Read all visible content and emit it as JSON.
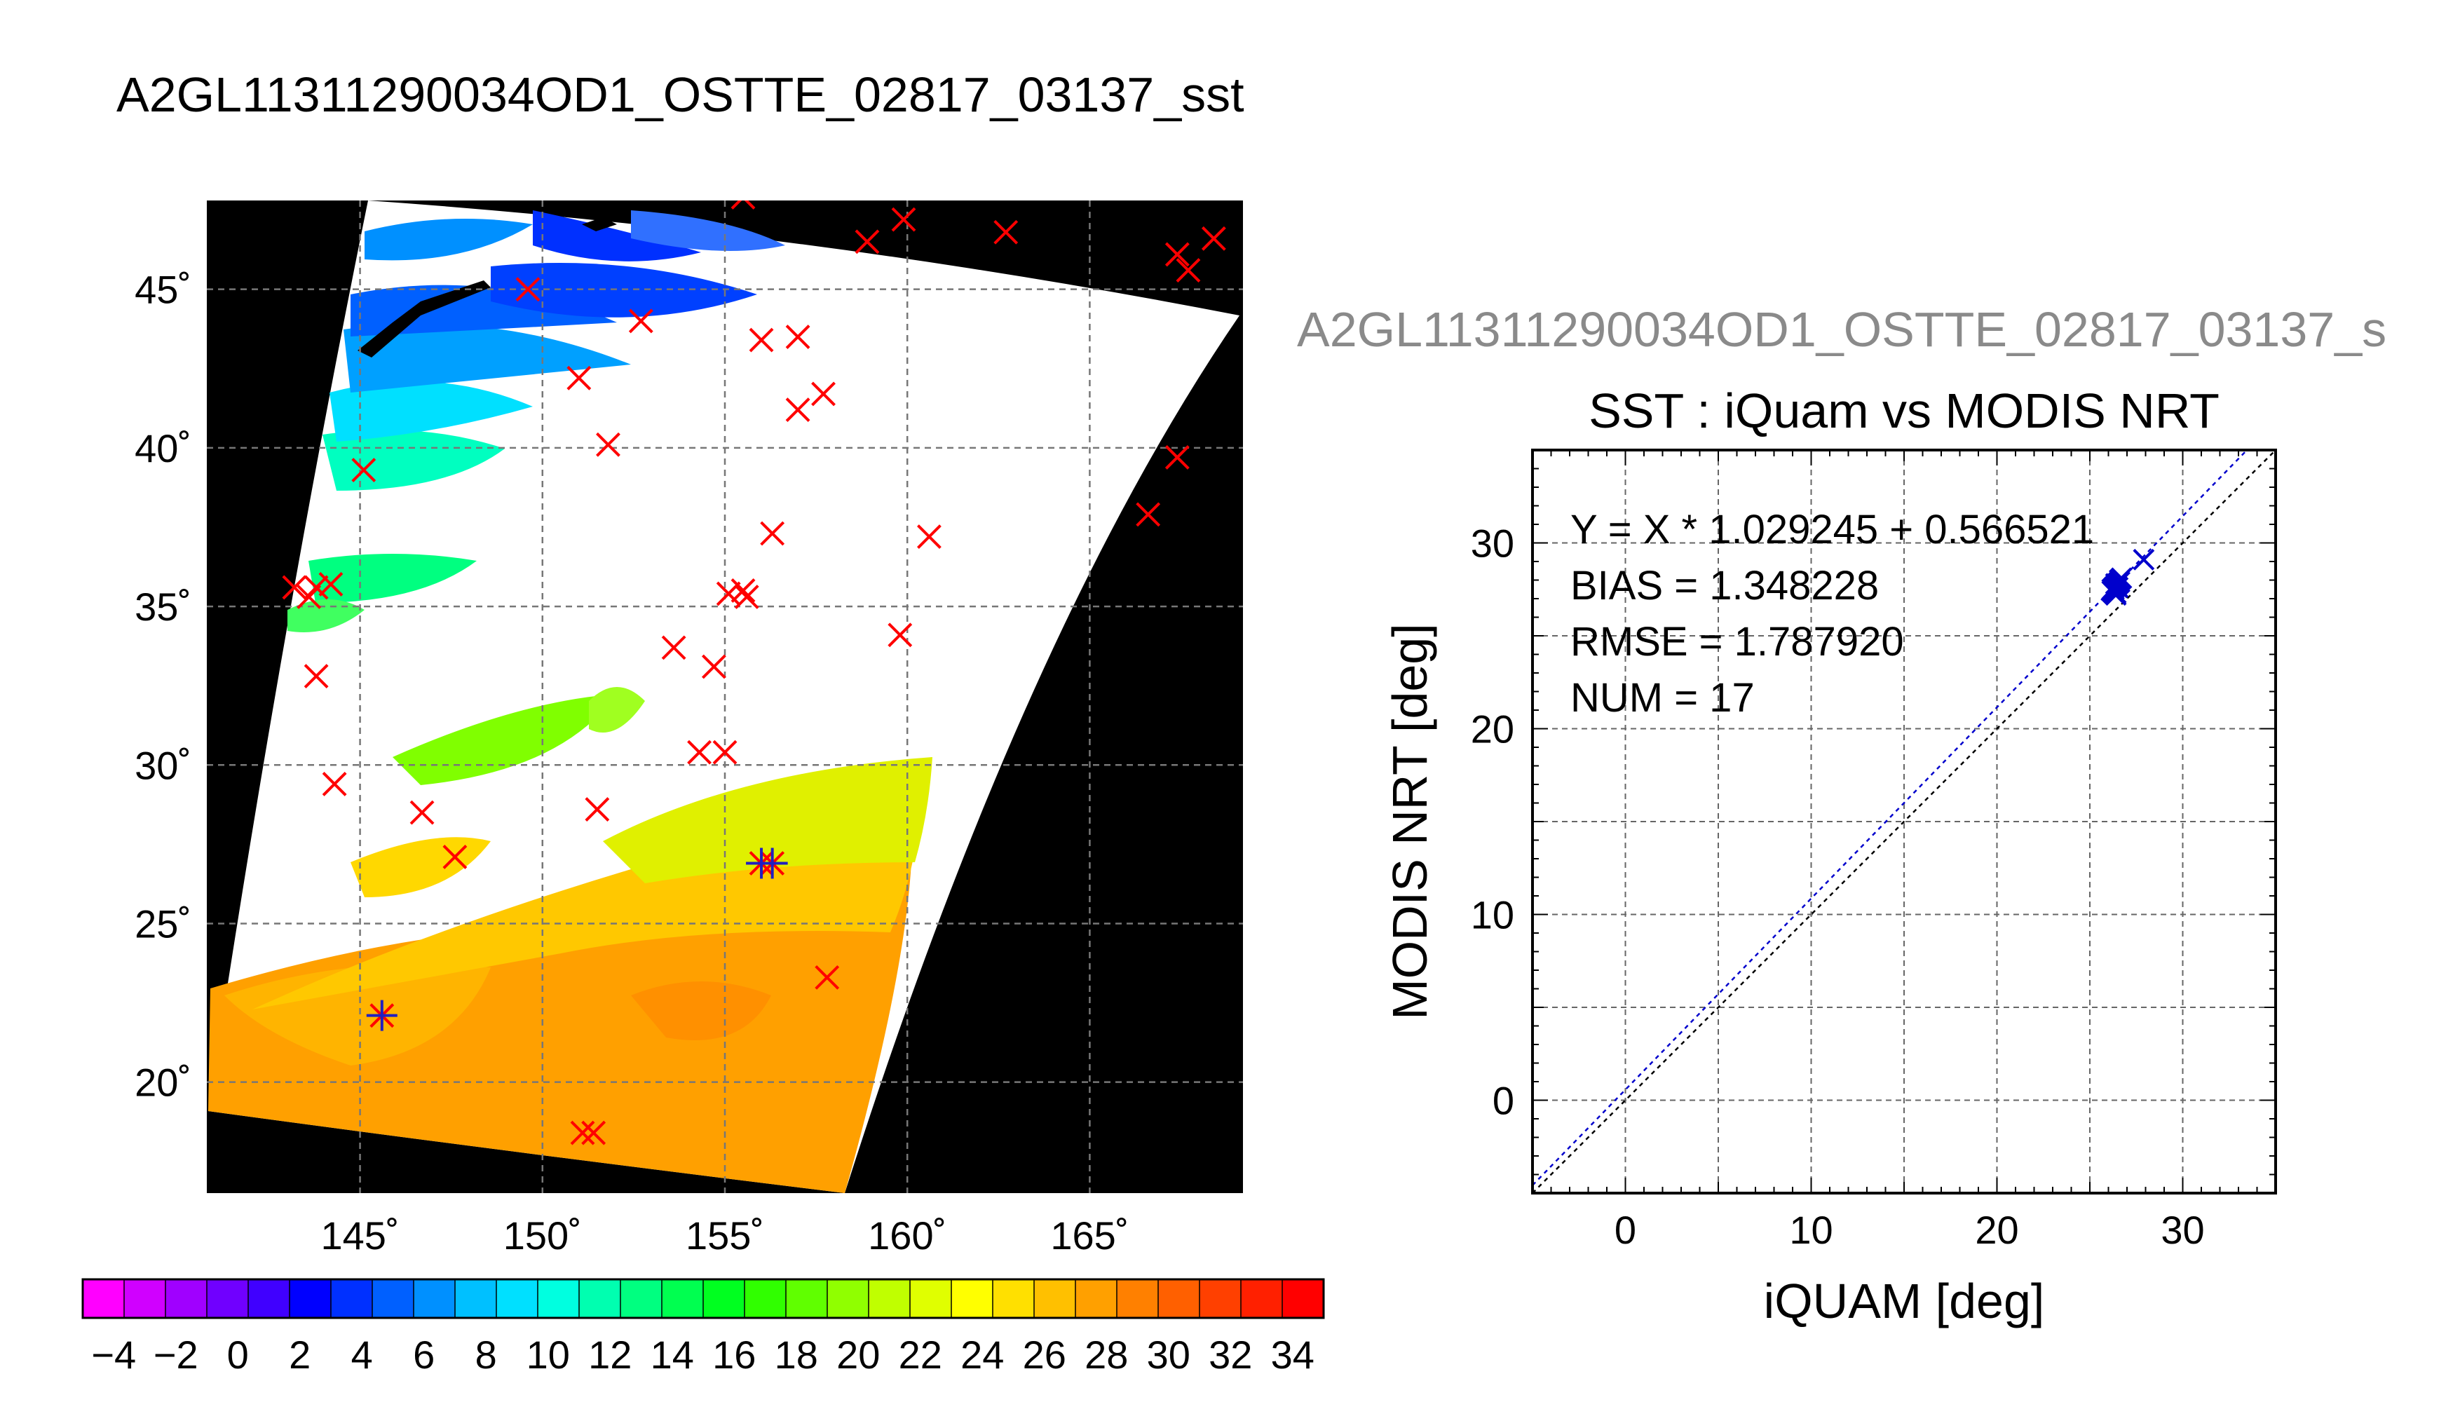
{
  "page": {
    "title": "A2GL11311290034OD1_OSTTE_02817_03137_sst",
    "subtitle": "A2GL11311290034OD1_OSTTE_02817_03137_s"
  },
  "map": {
    "lon_ticks": [
      "145˚",
      "150˚",
      "155˚",
      "160˚",
      "165˚"
    ],
    "lat_ticks": [
      "45˚",
      "40˚",
      "35˚",
      "30˚",
      "25˚",
      "20˚"
    ],
    "lon_range": [
      140.8,
      169.2
    ],
    "lat_range": [
      16.5,
      47.8
    ],
    "lon_values": [
      145,
      150,
      155,
      160,
      165
    ],
    "lat_values": [
      45,
      40,
      35,
      30,
      25,
      20
    ],
    "matchups_red": [
      [
        155.5,
        47.9
      ],
      [
        158.9,
        46.5
      ],
      [
        159.9,
        47.2
      ],
      [
        162.7,
        46.8
      ],
      [
        167.4,
        46.1
      ],
      [
        167.7,
        45.6
      ],
      [
        168.4,
        46.6
      ],
      [
        149.6,
        45.0
      ],
      [
        152.7,
        44.0
      ],
      [
        156.0,
        43.4
      ],
      [
        157.0,
        43.5
      ],
      [
        151.0,
        42.2
      ],
      [
        157.0,
        41.2
      ],
      [
        157.7,
        41.7
      ],
      [
        151.8,
        40.1
      ],
      [
        145.1,
        39.3
      ],
      [
        167.4,
        39.7
      ],
      [
        166.6,
        37.9
      ],
      [
        156.3,
        37.3
      ],
      [
        160.6,
        37.2
      ],
      [
        143.2,
        35.6
      ],
      [
        143.6,
        35.3
      ],
      [
        143.8,
        35.6
      ],
      [
        144.2,
        35.7
      ],
      [
        155.1,
        35.4
      ],
      [
        155.5,
        35.5
      ],
      [
        155.6,
        35.3
      ],
      [
        153.6,
        33.7
      ],
      [
        154.7,
        33.1
      ],
      [
        159.8,
        34.1
      ],
      [
        143.8,
        32.8
      ],
      [
        154.3,
        30.4
      ],
      [
        155.0,
        30.4
      ],
      [
        144.3,
        29.4
      ],
      [
        146.7,
        28.5
      ],
      [
        151.5,
        28.6
      ],
      [
        147.6,
        27.1
      ],
      [
        156.0,
        26.9
      ],
      [
        156.3,
        26.9
      ],
      [
        157.8,
        23.3
      ],
      [
        145.6,
        22.1
      ],
      [
        151.1,
        18.4
      ],
      [
        151.4,
        18.4
      ]
    ],
    "matchups_blue": [
      [
        156.0,
        26.9
      ],
      [
        156.3,
        26.9
      ],
      [
        145.6,
        22.1
      ]
    ]
  },
  "colorbar": {
    "min": -5,
    "max": 35,
    "tick_labels": [
      "−4",
      "−2",
      "0",
      "2",
      "4",
      "6",
      "8",
      "10",
      "12",
      "14",
      "16",
      "18",
      "20",
      "22",
      "24",
      "26",
      "28",
      "30",
      "32",
      "34"
    ],
    "tick_values": [
      -4,
      -2,
      0,
      2,
      4,
      6,
      8,
      10,
      12,
      14,
      16,
      18,
      20,
      22,
      24,
      26,
      28,
      30,
      32,
      34
    ],
    "colors": [
      "#ff00ff",
      "#d000ff",
      "#a000ff",
      "#7000ff",
      "#4000ff",
      "#0000ff",
      "#0030ff",
      "#0060ff",
      "#0090ff",
      "#00c0ff",
      "#00e0ff",
      "#00ffe0",
      "#00ffb0",
      "#00ff80",
      "#00ff50",
      "#00ff20",
      "#30ff00",
      "#60ff00",
      "#90ff00",
      "#c0ff00",
      "#e0ff00",
      "#ffff00",
      "#ffe000",
      "#ffc000",
      "#ffa000",
      "#ff8000",
      "#ff6000",
      "#ff4000",
      "#ff2000",
      "#ff0000"
    ]
  },
  "chart_data": {
    "type": "scatter",
    "title": "SST : iQuam vs MODIS NRT",
    "xlabel": "iQUAM [deg]",
    "ylabel": "MODIS NRT [deg]",
    "xlim": [
      -5,
      35
    ],
    "ylim": [
      -5,
      35
    ],
    "xticks": [
      0,
      10,
      20,
      30
    ],
    "yticks": [
      0,
      10,
      20,
      30
    ],
    "grid": true,
    "annotations": [
      "Y = X * 1.029245 + 0.566521",
      "BIAS = 1.348228",
      "RMSE = 1.787920",
      "NUM = 17"
    ],
    "fit": {
      "slope": 1.029245,
      "intercept": 0.566521,
      "color": "#0000cc"
    },
    "identity_line": {
      "color": "#000000"
    },
    "series": [
      {
        "marker": "x",
        "color": "#0000cc",
        "x": [
          26.2,
          26.4,
          26.6,
          26.3,
          26.5,
          27.9,
          26.4,
          26.6,
          26.2,
          26.5,
          26.3,
          26.7,
          26.4,
          26.5,
          26.3,
          26.6,
          26.4
        ],
        "y": [
          27.5,
          27.8,
          28.0,
          27.3,
          27.6,
          29.1,
          27.7,
          27.9,
          27.4,
          27.6,
          27.5,
          28.1,
          27.3,
          27.8,
          27.6,
          27.9,
          27.2
        ]
      }
    ]
  }
}
